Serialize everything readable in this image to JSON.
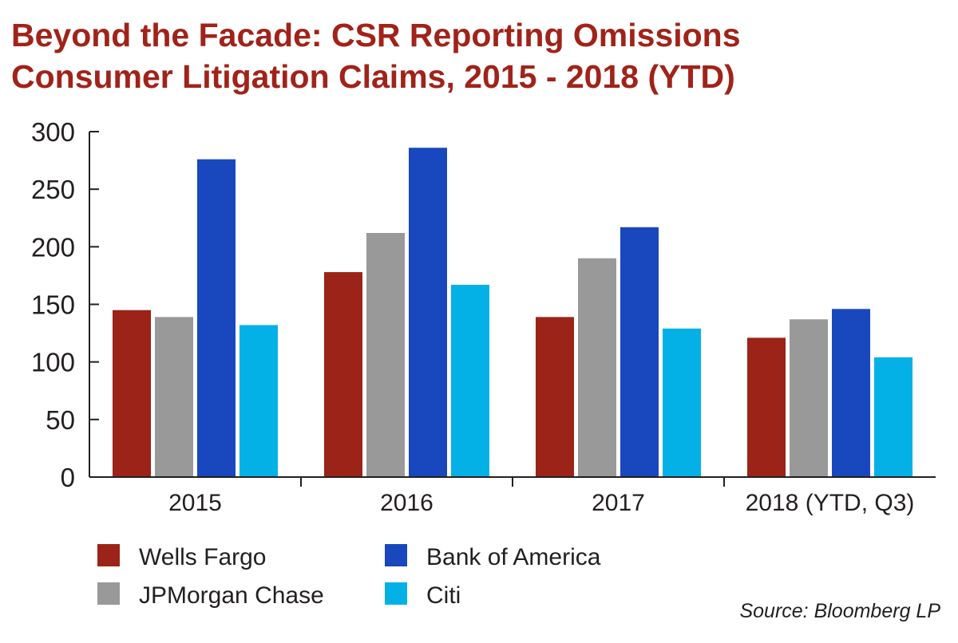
{
  "title": {
    "line1": "Beyond the Facade: CSR Reporting Omissions",
    "line2": "Consumer Litigation Claims, 2015 - 2018 (YTD)"
  },
  "source": "Source: Bloomberg LP",
  "colors": {
    "title": "#a0231a",
    "axis": "#231f20"
  },
  "chart_data": {
    "type": "bar",
    "title": "Consumer Litigation Claims, 2015 - 2018 (YTD)",
    "xlabel": "",
    "ylabel": "",
    "ylim": [
      0,
      300
    ],
    "yticks": [
      0,
      50,
      100,
      150,
      200,
      250,
      300
    ],
    "grid": false,
    "legend_position": "bottom-left",
    "categories": [
      "2015",
      "2016",
      "2017",
      "2018 (YTD, Q3)"
    ],
    "series": [
      {
        "name": "Wells Fargo",
        "color": "#9b2318",
        "values": [
          145,
          178,
          139,
          121
        ]
      },
      {
        "name": "JPMorgan Chase",
        "color": "#999999",
        "values": [
          139,
          212,
          190,
          137
        ]
      },
      {
        "name": "Bank of America",
        "color": "#1947bd",
        "values": [
          276,
          286,
          217,
          146
        ]
      },
      {
        "name": "Citi",
        "color": "#04b1e6",
        "values": [
          132,
          167,
          129,
          104
        ]
      }
    ]
  }
}
